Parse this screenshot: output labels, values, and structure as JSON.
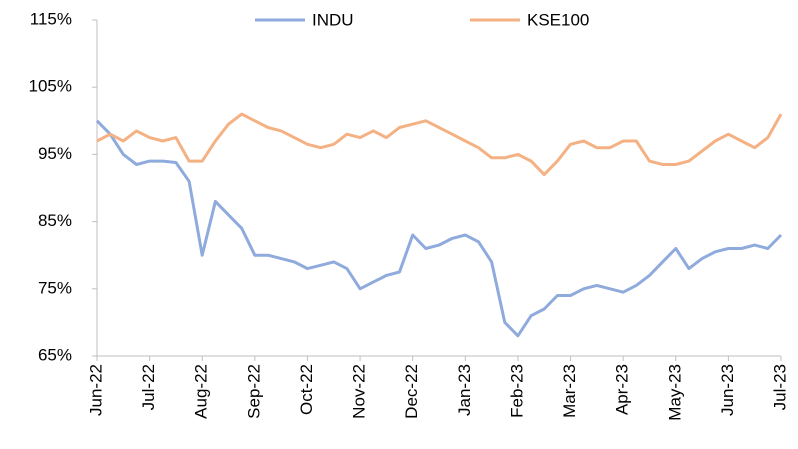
{
  "chart_data": {
    "type": "line",
    "categories": [
      "Jun-22",
      null,
      null,
      null,
      "Jul-22",
      null,
      null,
      null,
      "Aug-22",
      null,
      null,
      null,
      "Sep-22",
      null,
      null,
      null,
      "Oct-22",
      null,
      null,
      null,
      "Nov-22",
      null,
      null,
      null,
      "Dec-22",
      null,
      null,
      null,
      "Jan-23",
      null,
      null,
      null,
      "Feb-23",
      null,
      null,
      null,
      "Mar-23",
      null,
      null,
      null,
      "Apr-23",
      null,
      null,
      null,
      "May-23",
      null,
      null,
      null,
      "Jun-23",
      null,
      null,
      null,
      "Jul-23"
    ],
    "series": [
      {
        "name": "INDU",
        "color": "#8faadc",
        "values": [
          100,
          98,
          95,
          93.5,
          94,
          94,
          93.8,
          91,
          80,
          88,
          86,
          84,
          80,
          80,
          79.5,
          79,
          78,
          78.5,
          79,
          78,
          75,
          76,
          77,
          77.5,
          83,
          81,
          81.5,
          82.5,
          83,
          82,
          79,
          70,
          68,
          71,
          72,
          74,
          74,
          75,
          75.5,
          75,
          74.5,
          75.5,
          77,
          79,
          81,
          78,
          79.5,
          80.5,
          81,
          81,
          81.5,
          81,
          83
        ]
      },
      {
        "name": "KSE100",
        "color": "#f4b183",
        "values": [
          97,
          98,
          97,
          98.5,
          97.5,
          97,
          97.5,
          94,
          94,
          97,
          99.5,
          101,
          100,
          99,
          98.5,
          97.5,
          96.5,
          96,
          96.5,
          98,
          97.5,
          98.5,
          97.5,
          99,
          99.5,
          100,
          99,
          98,
          97,
          96,
          94.5,
          94.5,
          95,
          94,
          92,
          94,
          96.5,
          97,
          96,
          96,
          97,
          97,
          94,
          93.5,
          93.5,
          94,
          95.5,
          97,
          98,
          97,
          96,
          97.5,
          101
        ]
      }
    ],
    "ylim": [
      65,
      115
    ],
    "yticks": [
      {
        "value": 65,
        "label": "65%"
      },
      {
        "value": 75,
        "label": "75%"
      },
      {
        "value": 85,
        "label": "85%"
      },
      {
        "value": 95,
        "label": "95%"
      },
      {
        "value": 105,
        "label": "105%"
      },
      {
        "value": 115,
        "label": "115%"
      }
    ],
    "grid": false,
    "legend": "top"
  }
}
